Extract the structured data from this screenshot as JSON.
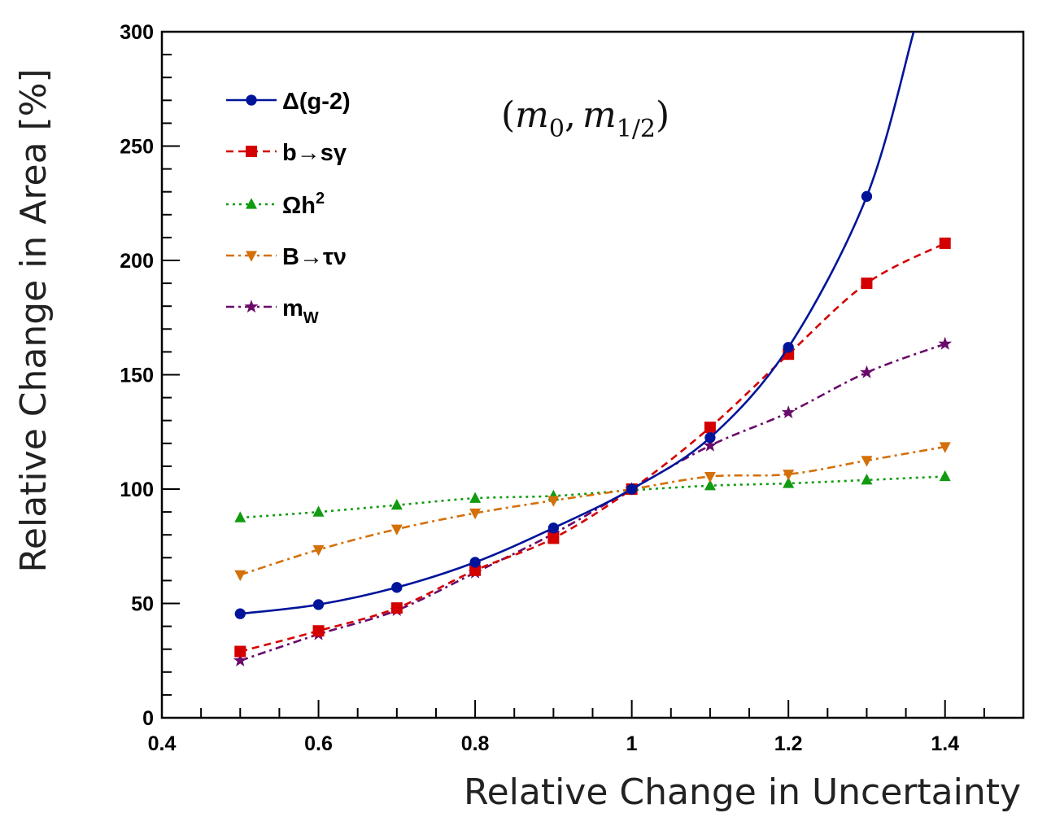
{
  "chart_data": {
    "type": "line",
    "xlabel": "Relative Change in Uncertainty",
    "ylabel": "Relative Change in Area [%]",
    "xlim": [
      0.4,
      1.5
    ],
    "ylim": [
      0,
      300
    ],
    "x_ticks": [
      "0.4",
      "0.6",
      "0.8",
      "1",
      "1.2",
      "1.4"
    ],
    "y_ticks": [
      "0",
      "50",
      "100",
      "150",
      "200",
      "250",
      "300"
    ],
    "annotation": {
      "open": "(",
      "m": "m",
      "sub0": "0",
      "comma": ",",
      "sub_half": "1/2",
      "close": ")"
    },
    "legend_position": "top-left",
    "x": [
      0.5,
      0.6,
      0.7,
      0.8,
      0.9,
      1.0,
      1.1,
      1.2,
      1.3,
      1.4
    ],
    "series": [
      {
        "name": "Δ(g-2)",
        "label_main": "Δ(g-2)",
        "label_sup": "",
        "label_sub": "",
        "color": "#00149a",
        "marker": "circle",
        "dash": "solid",
        "values": [
          45.5,
          49.5,
          57,
          68,
          83,
          100,
          122.5,
          162,
          228,
          null
        ],
        "extrapolate_to": [
          1.36,
          300
        ]
      },
      {
        "name": "b→sγ",
        "label_main": "b→sγ",
        "label_sup": "",
        "label_sub": "",
        "color": "#d40000",
        "marker": "square",
        "dash": "dashed",
        "values": [
          29,
          38,
          48,
          64.5,
          78.5,
          100,
          127,
          159,
          190,
          207.5
        ]
      },
      {
        "name": "Ωh2",
        "label_main": "Ωh",
        "label_sup": "2",
        "label_sub": "",
        "color": "#119b11",
        "marker": "triangle-up",
        "dash": "dotted",
        "values": [
          87.5,
          90,
          93,
          96,
          97,
          99.5,
          101.5,
          102.5,
          104,
          105.5
        ]
      },
      {
        "name": "B→τν",
        "label_main": "B→τν",
        "label_sup": "",
        "label_sub": "",
        "color": "#d4700a",
        "marker": "triangle-down",
        "dash": "dashdot",
        "values": [
          62.5,
          73.5,
          82.5,
          89.5,
          95,
          100,
          105.5,
          106.5,
          112.5,
          118.5
        ]
      },
      {
        "name": "mW",
        "label_main": "m",
        "label_sup": "",
        "label_sub": "W",
        "color": "#6a0a6a",
        "marker": "star",
        "dash": "dashdot",
        "values": [
          25,
          36.5,
          47,
          63.5,
          80.5,
          100,
          119,
          133.5,
          151,
          163.5
        ]
      }
    ]
  }
}
